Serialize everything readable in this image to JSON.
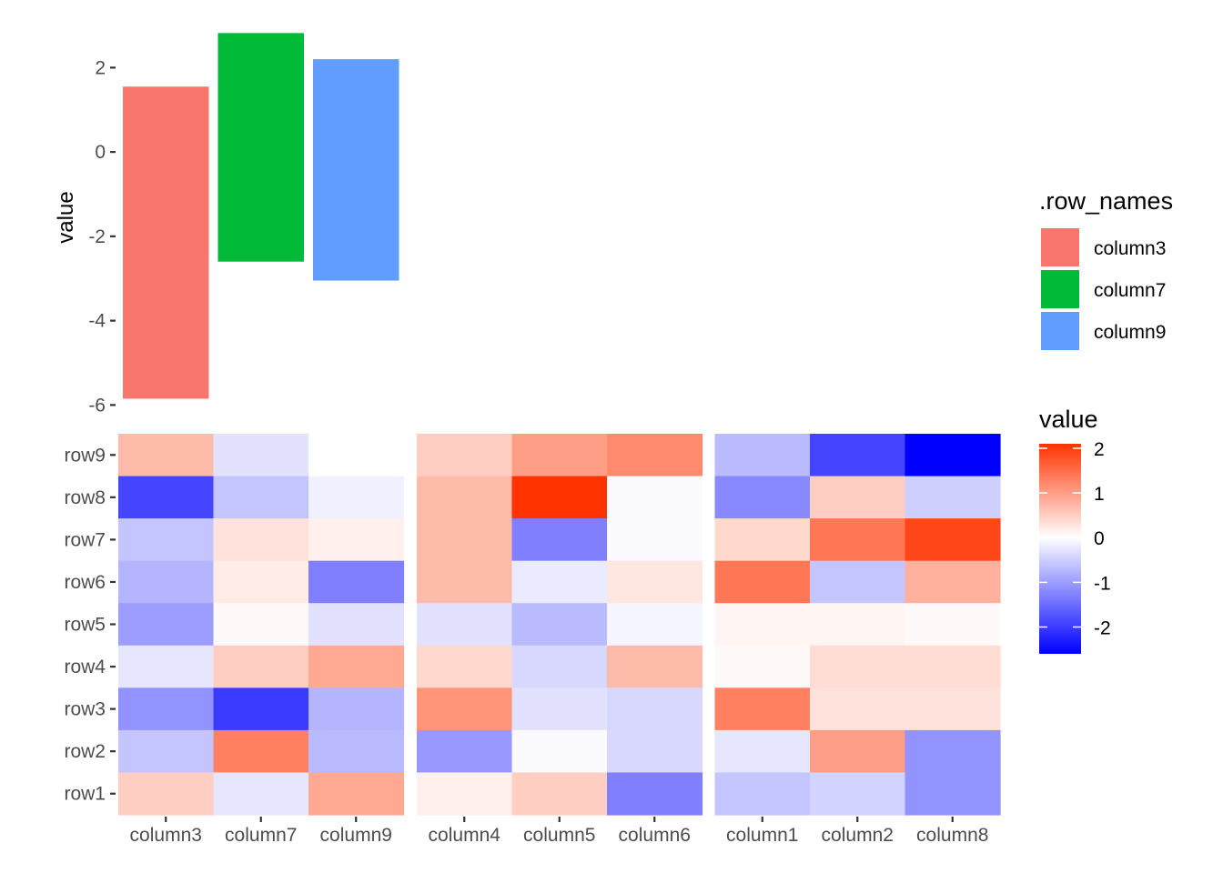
{
  "chart_data": [
    {
      "type": "bar",
      "subtype": "floating-range",
      "ylabel": "value",
      "ylim": [
        -6.1,
        3.0
      ],
      "yticks": [
        2,
        0,
        -2,
        -4,
        -6
      ],
      "ytick_labels": [
        "2",
        "0",
        "-2",
        "-4",
        "-6"
      ],
      "categories": [
        "column3",
        "column7",
        "column9"
      ],
      "series": [
        {
          "name": "column3",
          "range": [
            -5.85,
            1.55
          ],
          "color": "#F8766D"
        },
        {
          "name": "column7",
          "range": [
            -2.6,
            2.82
          ],
          "color": "#00BA38"
        },
        {
          "name": "column9",
          "range": [
            -3.05,
            2.2
          ],
          "color": "#619CFF"
        }
      ],
      "legend": {
        "title": ".row_names",
        "position": "right",
        "entries": [
          "column3",
          "column7",
          "column9"
        ]
      },
      "grid": false
    },
    {
      "type": "heatmap",
      "rows": [
        "row1",
        "row2",
        "row3",
        "row4",
        "row5",
        "row6",
        "row7",
        "row8",
        "row9"
      ],
      "panels": [
        {
          "columns": [
            "column3",
            "column7",
            "column9"
          ]
        },
        {
          "columns": [
            "column4",
            "column5",
            "column6"
          ]
        },
        {
          "columns": [
            "column1",
            "column2",
            "column8"
          ]
        }
      ],
      "columns_order": [
        "column3",
        "column7",
        "column9",
        "column4",
        "column5",
        "column6",
        "column1",
        "column2",
        "column8"
      ],
      "values": {
        "row9": [
          0.7,
          -0.3,
          0.0,
          0.5,
          1.0,
          1.2,
          -0.7,
          -1.9,
          -2.6
        ],
        "row8": [
          -1.9,
          -0.6,
          -0.15,
          0.7,
          2.1,
          -0.05,
          -1.2,
          0.5,
          -0.5
        ],
        "row7": [
          -0.6,
          0.3,
          0.15,
          0.7,
          -1.3,
          -0.05,
          0.4,
          1.4,
          1.9
        ],
        "row6": [
          -0.75,
          0.2,
          -1.3,
          0.7,
          -0.2,
          0.25,
          1.4,
          -0.6,
          0.8
        ],
        "row5": [
          -1.0,
          0.05,
          -0.3,
          -0.3,
          -0.7,
          -0.1,
          0.1,
          0.1,
          0.05
        ],
        "row4": [
          -0.25,
          0.5,
          0.9,
          0.4,
          -0.4,
          0.7,
          0.05,
          0.35,
          0.35
        ],
        "row3": [
          -1.1,
          -2.0,
          -0.75,
          1.1,
          -0.3,
          -0.4,
          1.3,
          0.3,
          0.3
        ],
        "row2": [
          -0.6,
          1.3,
          -0.7,
          -1.05,
          -0.05,
          -0.4,
          -0.25,
          1.0,
          -1.1
        ],
        "row1": [
          0.5,
          -0.25,
          0.9,
          0.15,
          0.5,
          -1.3,
          -0.6,
          -0.45,
          -1.1
        ]
      },
      "colorbar": {
        "title": "value",
        "ticks": [
          2,
          1,
          0,
          -1,
          -2
        ],
        "tick_labels": [
          "2",
          "1",
          "0",
          "-1",
          "-2"
        ],
        "range": [
          -2.6,
          2.1
        ],
        "low_color": "#0000FF",
        "mid_color": "#FFFFFF",
        "high_color": "#FF3300"
      },
      "grid": false
    }
  ]
}
